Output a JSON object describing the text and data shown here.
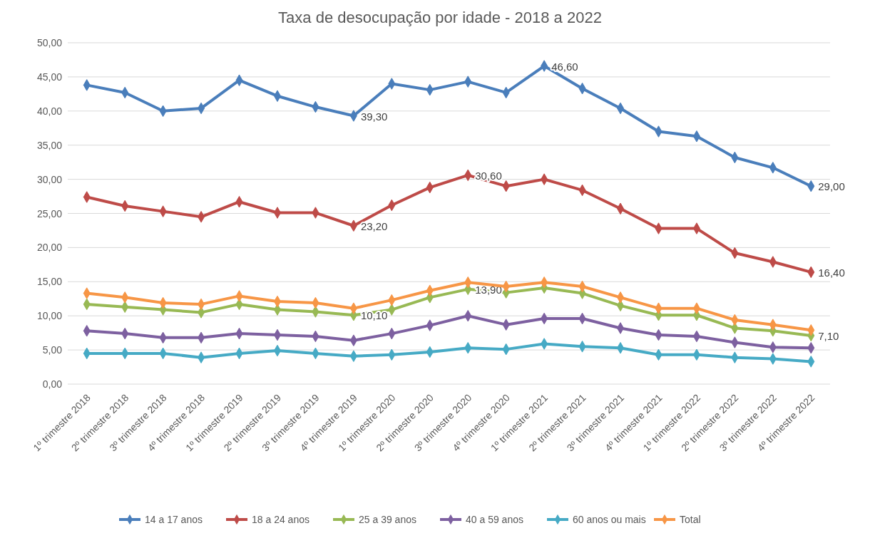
{
  "chart_data": {
    "type": "line",
    "title": "Taxa de desocupação por idade - 2018 a 2022",
    "categories": [
      "1º trimestre 2018",
      "2º trimestre 2018",
      "3º trimestre 2018",
      "4º trimestre 2018",
      "1º trimestre 2019",
      "2º trimestre 2019",
      "3º trimestre 2019",
      "4º trimestre 2019",
      "1º trimestre 2020",
      "2º trimestre 2020",
      "3º trimestre 2020",
      "4º trimestre 2020",
      "1º trimestre 2021",
      "2º trimestre 2021",
      "3º trimestre 2021",
      "4º trimestre 2021",
      "1º trimestre 2022",
      "2º trimestre 2022",
      "3º trimestre 2022",
      "4º trimestre 2022"
    ],
    "series": [
      {
        "name": "14 a 17 anos",
        "color": "#4a7ebb",
        "values": [
          43.8,
          42.7,
          40.0,
          40.4,
          44.5,
          42.2,
          40.6,
          39.3,
          44.0,
          43.1,
          44.3,
          42.7,
          46.6,
          43.3,
          40.4,
          37.0,
          36.3,
          33.2,
          31.7,
          29.0
        ],
        "value_labels": [
          null,
          null,
          null,
          null,
          null,
          null,
          null,
          "39,30",
          null,
          null,
          null,
          null,
          "46,60",
          null,
          null,
          null,
          null,
          null,
          null,
          "29,00"
        ]
      },
      {
        "name": "18 a 24 anos",
        "color": "#be4b48",
        "values": [
          27.4,
          26.1,
          25.3,
          24.5,
          26.7,
          25.1,
          25.1,
          23.2,
          26.2,
          28.8,
          30.6,
          29.0,
          30.0,
          28.4,
          25.7,
          22.8,
          22.8,
          19.2,
          17.9,
          16.4
        ],
        "value_labels": [
          null,
          null,
          null,
          null,
          null,
          null,
          null,
          "23,20",
          null,
          null,
          "30,60",
          null,
          null,
          null,
          null,
          null,
          null,
          null,
          null,
          "16,40"
        ]
      },
      {
        "name": "25 a 39 anos",
        "color": "#98b954",
        "values": [
          11.7,
          11.3,
          10.9,
          10.5,
          11.7,
          10.9,
          10.6,
          10.1,
          10.9,
          12.7,
          13.9,
          13.4,
          14.1,
          13.3,
          11.5,
          10.1,
          10.1,
          8.2,
          7.8,
          7.1
        ],
        "value_labels": [
          null,
          null,
          null,
          null,
          null,
          null,
          null,
          "10,10",
          null,
          null,
          "13,90",
          null,
          null,
          null,
          null,
          null,
          null,
          null,
          null,
          "7,10"
        ]
      },
      {
        "name": "40 a 59 anos",
        "color": "#7d60a0",
        "values": [
          7.8,
          7.4,
          6.8,
          6.8,
          7.4,
          7.2,
          7.0,
          6.4,
          7.4,
          8.6,
          10.0,
          8.7,
          9.6,
          9.6,
          8.2,
          7.2,
          7.0,
          6.1,
          5.4,
          5.3
        ]
      },
      {
        "name": "60 anos ou mais",
        "color": "#46aac5",
        "values": [
          4.5,
          4.5,
          4.5,
          3.9,
          4.5,
          4.9,
          4.5,
          4.1,
          4.3,
          4.7,
          5.3,
          5.1,
          5.9,
          5.5,
          5.3,
          4.3,
          4.3,
          3.9,
          3.7,
          3.3
        ]
      },
      {
        "name": "Total",
        "color": "#f79646",
        "values": [
          13.3,
          12.7,
          11.9,
          11.7,
          12.9,
          12.1,
          11.9,
          11.1,
          12.3,
          13.7,
          14.9,
          14.3,
          14.9,
          14.3,
          12.7,
          11.1,
          11.1,
          9.4,
          8.7,
          7.9
        ]
      }
    ],
    "ylim": [
      0,
      50
    ],
    "yticks": [
      {
        "value": 0,
        "label": "0,00"
      },
      {
        "value": 5,
        "label": "5,00"
      },
      {
        "value": 10,
        "label": "10,00"
      },
      {
        "value": 15,
        "label": "15,00"
      },
      {
        "value": 20,
        "label": "20,00"
      },
      {
        "value": 25,
        "label": "25,00"
      },
      {
        "value": 30,
        "label": "30,00"
      },
      {
        "value": 35,
        "label": "35,00"
      },
      {
        "value": 40,
        "label": "40,00"
      },
      {
        "value": 45,
        "label": "45,00"
      },
      {
        "value": 50,
        "label": "50,00"
      }
    ],
    "grid": "y",
    "legend": "bottom",
    "marker": "diamond",
    "line_style": "solid"
  }
}
